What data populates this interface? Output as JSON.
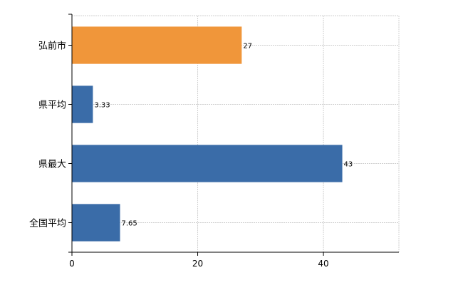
{
  "chart_data": {
    "type": "bar",
    "orientation": "horizontal",
    "categories": [
      "弘前市",
      "県平均",
      "県最大",
      "全国平均"
    ],
    "values": [
      27,
      3.33,
      43,
      7.65
    ],
    "value_labels": [
      "27",
      "3.33",
      "43",
      "7.65"
    ],
    "bar_colors": [
      "#F0963A",
      "#3A6CA8",
      "#3A6CA8",
      "#3A6CA8"
    ],
    "xlim": [
      0,
      52
    ],
    "xticks": [
      0,
      20,
      40
    ],
    "xtick_labels": [
      "0",
      "20",
      "40"
    ],
    "grid": true,
    "title": "",
    "xlabel": "",
    "ylabel": ""
  }
}
